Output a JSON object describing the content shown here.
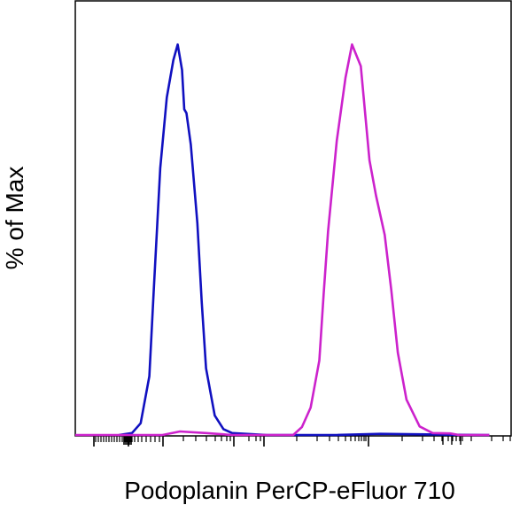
{
  "chart_data": {
    "type": "line",
    "subtype": "flow-cytometry histogram overlay",
    "title": "",
    "xlabel": "Podoplanin PerCP-eFluor 710",
    "ylabel": "% of Max",
    "x_scale": "biexponential (log-like)",
    "x_tick_labels_shown": false,
    "y_tick_labels_shown": false,
    "grid": false,
    "legend": "none",
    "ylim": [
      0,
      100
    ],
    "series": [
      {
        "color": "#1010c0",
        "x": [
          0.1,
          0.13,
          0.15,
          0.17,
          0.18,
          0.195,
          0.21,
          0.225,
          0.235,
          0.245,
          0.25,
          0.255,
          0.265,
          0.28,
          0.29,
          0.3,
          0.32,
          0.34,
          0.36,
          0.44,
          0.6,
          0.7,
          0.85,
          0.95
        ],
        "y": [
          0,
          0.5,
          3,
          15,
          37,
          68,
          86,
          95.5,
          99.5,
          93,
          83,
          82,
          74,
          54,
          34,
          17,
          5,
          1.5,
          0.5,
          0,
          0,
          0.3,
          0.1,
          0
        ]
      },
      {
        "color": "#cc22cc",
        "x": [
          0.0,
          0.1,
          0.2,
          0.24,
          0.3,
          0.36,
          0.5,
          0.52,
          0.54,
          0.56,
          0.57,
          0.58,
          0.6,
          0.62,
          0.635,
          0.655,
          0.665,
          0.675,
          0.69,
          0.71,
          0.725,
          0.74,
          0.76,
          0.79,
          0.82,
          0.86,
          0.88,
          0.95
        ],
        "y": [
          0,
          0,
          0,
          0.9,
          0.5,
          0,
          0,
          2,
          7,
          19,
          36,
          52,
          75,
          91,
          99.5,
          94,
          82,
          70,
          61,
          51,
          37,
          21,
          9,
          2.2,
          0.5,
          0.4,
          0,
          0
        ]
      }
    ]
  }
}
